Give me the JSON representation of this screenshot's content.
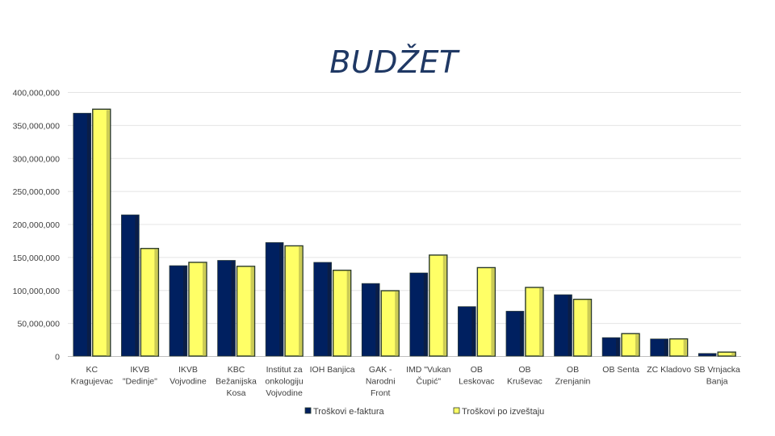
{
  "chart_data": {
    "type": "bar",
    "title": "BUDŽET",
    "xlabel": "",
    "ylabel": "",
    "ylim": [
      0,
      400000000
    ],
    "yticks": [
      "400,000,000",
      "350,000,000",
      "300,000,000",
      "250,000,000",
      "200,000,000",
      "150,000,000",
      "100,000,000",
      "50,000,000",
      "0"
    ],
    "ytick_values": [
      400000000,
      350000000,
      300000000,
      250000000,
      200000000,
      150000000,
      100000000,
      50000000,
      0
    ],
    "grid": true,
    "legend_position": "bottom",
    "categories": [
      [
        "KC",
        "Kragujevac"
      ],
      [
        "IKVB",
        "\"Dedinje\""
      ],
      [
        "IKVB",
        "Vojvodine"
      ],
      [
        "KBC",
        "Bežanijska",
        "Kosa"
      ],
      [
        "Institut za",
        "onkologiju",
        "Vojvodine"
      ],
      [
        "IOH Banjica"
      ],
      [
        "GAK -",
        "Narodni",
        "Front"
      ],
      [
        "IMD \"Vukan",
        "Čupić\""
      ],
      [
        "OB",
        "Leskovac"
      ],
      [
        "OB",
        "Kruševac"
      ],
      [
        "OB",
        "Zrenjanin"
      ],
      [
        "OB Senta"
      ],
      [
        "ZC Kladovo"
      ],
      [
        "SB Vrnjacka",
        "Banja"
      ]
    ],
    "series": [
      {
        "name": "Troškovi e-faktura",
        "color": "#002060",
        "values": [
          368000000,
          214000000,
          137000000,
          145000000,
          172000000,
          142000000,
          110000000,
          126000000,
          75000000,
          68000000,
          93000000,
          28000000,
          26000000,
          4000000
        ]
      },
      {
        "name": "Troškovi po izveštaju",
        "color": "#ffff66",
        "values": [
          374000000,
          163000000,
          142000000,
          136000000,
          167000000,
          130000000,
          99000000,
          153000000,
          134000000,
          104000000,
          86000000,
          34000000,
          26000000,
          6000000
        ]
      }
    ]
  }
}
